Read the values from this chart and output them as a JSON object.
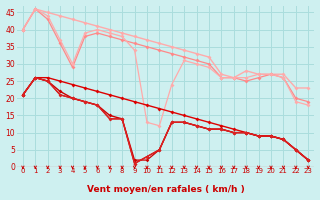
{
  "xlabel": "Vent moyen/en rafales ( km/h )",
  "background_color": "#cef0f0",
  "grid_color": "#aadddd",
  "ylim": [
    0,
    47
  ],
  "xlim": [
    -0.5,
    23.5
  ],
  "yticks": [
    0,
    5,
    10,
    15,
    20,
    25,
    30,
    35,
    40,
    45
  ],
  "xticks": [
    0,
    1,
    2,
    3,
    4,
    5,
    6,
    7,
    8,
    9,
    10,
    11,
    12,
    13,
    14,
    15,
    16,
    17,
    18,
    19,
    20,
    21,
    22,
    23
  ],
  "series": [
    {
      "x": [
        0,
        1,
        2,
        3,
        4,
        5,
        6,
        7,
        8,
        9,
        10,
        11,
        12,
        13,
        14,
        15,
        16,
        17,
        18,
        19,
        20,
        21,
        22,
        23
      ],
      "y": [
        40,
        46,
        45,
        44,
        43,
        42,
        41,
        40,
        39,
        38,
        37,
        36,
        35,
        34,
        33,
        32,
        27,
        26,
        28,
        27,
        27,
        27,
        23,
        23
      ],
      "color": "#ffaaaa",
      "lw": 1.0,
      "marker": "D",
      "ms": 2.0
    },
    {
      "x": [
        0,
        1,
        2,
        3,
        4,
        5,
        6,
        7,
        8,
        9,
        10,
        11,
        12,
        13,
        14,
        15,
        16,
        17,
        18,
        19,
        20,
        21,
        22,
        23
      ],
      "y": [
        40,
        46,
        43,
        36,
        29,
        38,
        39,
        38,
        37,
        36,
        35,
        34,
        33,
        32,
        31,
        30,
        26,
        26,
        25,
        26,
        27,
        26,
        20,
        19
      ],
      "color": "#ff8888",
      "lw": 0.9,
      "marker": "D",
      "ms": 2.0
    },
    {
      "x": [
        0,
        1,
        2,
        3,
        4,
        5,
        6,
        7,
        8,
        9,
        10,
        11,
        12,
        13,
        14,
        15,
        16,
        17,
        18,
        19,
        20,
        21,
        22,
        23
      ],
      "y": [
        40,
        46,
        44,
        37,
        30,
        39,
        40,
        39,
        38,
        34,
        13,
        12,
        24,
        31,
        30,
        29,
        26,
        26,
        26,
        27,
        27,
        26,
        19,
        18
      ],
      "color": "#ffaaaa",
      "lw": 0.9,
      "marker": "D",
      "ms": 2.0
    },
    {
      "x": [
        0,
        1,
        2,
        3,
        4,
        5,
        6,
        7,
        8,
        9,
        10,
        11,
        12,
        13,
        14,
        15,
        16,
        17,
        18,
        19,
        20,
        21,
        22,
        23
      ],
      "y": [
        21,
        26,
        26,
        25,
        24,
        23,
        22,
        21,
        20,
        19,
        18,
        17,
        16,
        15,
        14,
        13,
        12,
        11,
        10,
        9,
        9,
        8,
        5,
        2
      ],
      "color": "#dd0000",
      "lw": 1.0,
      "marker": "D",
      "ms": 2.0
    },
    {
      "x": [
        0,
        1,
        2,
        3,
        4,
        5,
        6,
        7,
        8,
        9,
        10,
        11,
        12,
        13,
        14,
        15,
        16,
        17,
        18,
        19,
        20,
        21,
        22,
        23
      ],
      "y": [
        21,
        26,
        25,
        22,
        20,
        19,
        18,
        15,
        14,
        1,
        3,
        5,
        13,
        13,
        12,
        11,
        11,
        10,
        10,
        9,
        9,
        8,
        5,
        2
      ],
      "color": "#cc0000",
      "lw": 1.0,
      "marker": "D",
      "ms": 2.0
    },
    {
      "x": [
        0,
        1,
        2,
        3,
        4,
        5,
        6,
        7,
        8,
        9,
        10,
        11,
        12,
        13,
        14,
        15,
        16,
        17,
        18,
        19,
        20,
        21,
        22,
        23
      ],
      "y": [
        21,
        26,
        25,
        21,
        20,
        19,
        18,
        14,
        14,
        2,
        2,
        5,
        13,
        13,
        12,
        11,
        11,
        10,
        10,
        9,
        9,
        8,
        5,
        2
      ],
      "color": "#cc0000",
      "lw": 0.9,
      "marker": "D",
      "ms": 1.8
    },
    {
      "x": [
        0,
        1,
        2,
        3,
        4,
        5,
        6,
        7,
        8,
        9,
        10,
        11,
        12,
        13,
        14,
        15,
        16,
        17,
        18,
        19,
        20,
        21,
        22,
        23
      ],
      "y": [
        21,
        26,
        25,
        21,
        20,
        19,
        18,
        14,
        14,
        1,
        3,
        5,
        13,
        13,
        12,
        11,
        11,
        10,
        10,
        9,
        9,
        8,
        5,
        2
      ],
      "color": "#dd2222",
      "lw": 0.9,
      "marker": "D",
      "ms": 1.8
    }
  ],
  "arrow_color": "#cc0000",
  "tick_label_color": "#cc0000",
  "axis_label_color": "#cc0000",
  "ytick_fontsize": 5.5,
  "xtick_fontsize": 5.0,
  "xlabel_fontsize": 6.5
}
